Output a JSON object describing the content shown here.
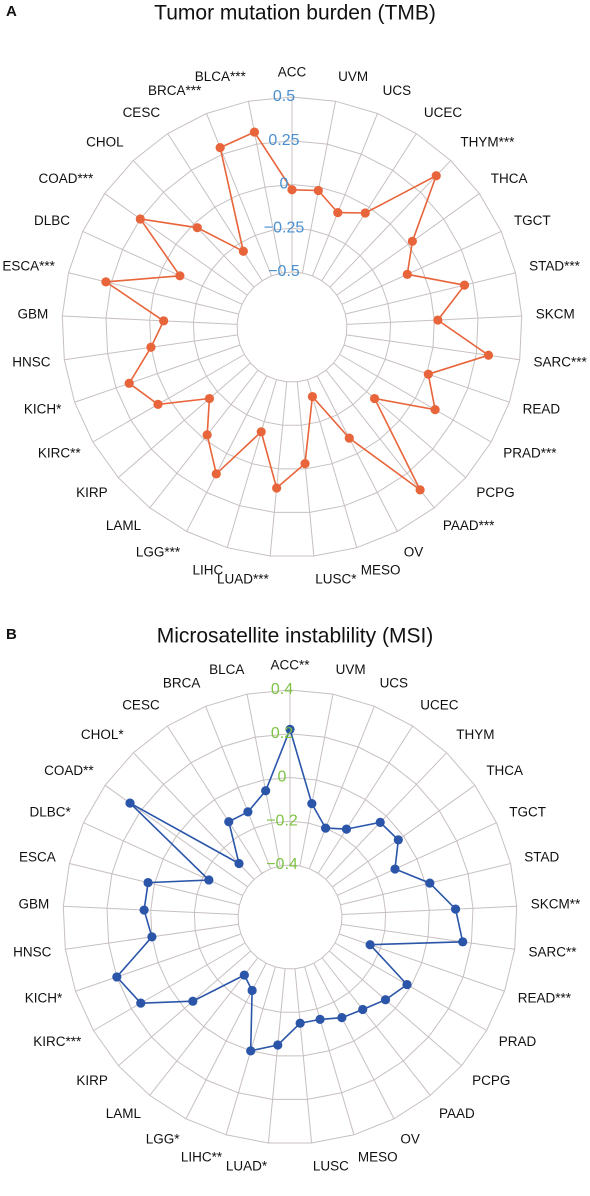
{
  "chart_data": [
    {
      "type": "radar",
      "label": "A",
      "title": "Tumor mutation burden (TMB)",
      "categories": [
        "ACC",
        "UVM",
        "UCS",
        "UCEC",
        "THYM***",
        "THCA",
        "TGCT",
        "STAD***",
        "SKCM",
        "SARC***",
        "READ",
        "PRAD***",
        "PCPG",
        "PAAD***",
        "OV",
        "MESO",
        "LUSC*",
        "LUAD***",
        "LIHC",
        "LGG***",
        "LAML",
        "KIRP",
        "KIRC**",
        "KICH*",
        "HNSC",
        "GBM",
        "ESCA***",
        "DLBC",
        "COAD***",
        "CHOL",
        "CESC",
        "BRCA***",
        "BLCA***"
      ],
      "values": [
        -0.03,
        -0.02,
        -0.11,
        -0.04,
        0.38,
        0.03,
        -0.09,
        0.2,
        0.02,
        0.32,
        0.01,
        0.13,
        -0.19,
        0.37,
        -0.1,
        -0.4,
        -0.03,
        0.11,
        -0.19,
        0.13,
        -0.03,
        -0.19,
        0.07,
        0.17,
        0.0,
        -0.08,
        0.28,
        -0.11,
        0.25,
        -0.03,
        -0.3,
        0.29,
        0.32
      ],
      "color": "#e8643a",
      "tick_color": "#4a8fd0",
      "ylim": [
        -0.5,
        0.5
      ],
      "yticks": [
        {
          "value": -0.5,
          "label": "−0.5"
        },
        {
          "value": -0.25,
          "label": "−0.25"
        },
        0,
        0.25,
        0.5
      ]
    },
    {
      "type": "radar",
      "label": "B",
      "title": "Microsatellite instablility (MSI)",
      "categories": [
        "ACC**",
        "UVM",
        "UCS",
        "UCEC",
        "THYM",
        "THCA",
        "TGCT",
        "STAD",
        "SKCM**",
        "SARC**",
        "READ***",
        "PRAD",
        "PCPG",
        "PAAD",
        "OV",
        "MESO",
        "LUSC",
        "LUAD*",
        "LIHC**",
        "LGG*",
        "LAML",
        "KIRP",
        "KIRC***",
        "KICH*",
        "HNSC",
        "GBM",
        "ESCA",
        "DLBC*",
        "COAD**",
        "CHOL*",
        "CESC",
        "BRCA",
        "BLCA"
      ],
      "values": [
        0.22,
        -0.11,
        -0.2,
        -0.16,
        -0.04,
        -0.03,
        -0.11,
        0.02,
        0.12,
        0.16,
        -0.25,
        -0.02,
        -0.06,
        -0.1,
        -0.12,
        -0.15,
        -0.15,
        -0.05,
        0.0,
        -0.26,
        -0.3,
        -0.05,
        0.15,
        0.2,
        0.0,
        0.03,
        0.03,
        -0.23,
        0.26,
        -0.3,
        -0.12,
        -0.12,
        -0.05
      ],
      "color": "#2a55a8",
      "tick_color": "#7dc243",
      "ylim": [
        -0.4,
        0.4
      ],
      "yticks": [
        {
          "value": -0.4,
          "label": "−0.4"
        },
        {
          "value": -0.2,
          "label": "−0.2"
        },
        0,
        0.2,
        0.4
      ]
    }
  ]
}
